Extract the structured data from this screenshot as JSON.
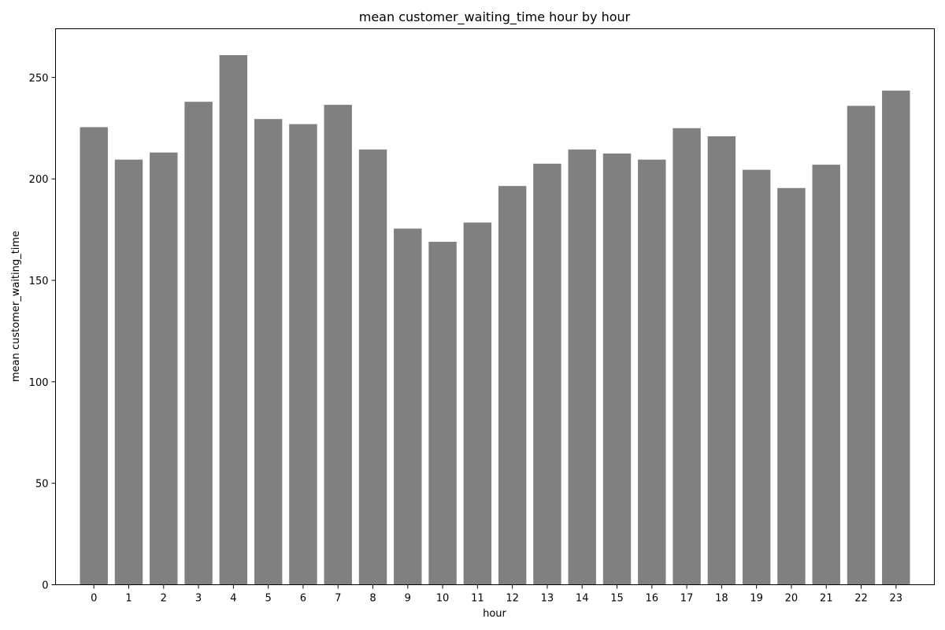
{
  "chart_data": {
    "type": "bar",
    "title": "mean customer_waiting_time hour by hour",
    "xlabel": "hour",
    "ylabel": "mean customer_waiting_time",
    "categories": [
      "0",
      "1",
      "2",
      "3",
      "4",
      "5",
      "6",
      "7",
      "8",
      "9",
      "10",
      "11",
      "12",
      "13",
      "14",
      "15",
      "16",
      "17",
      "18",
      "19",
      "20",
      "21",
      "22",
      "23"
    ],
    "values": [
      225.5,
      209.5,
      213,
      238,
      261,
      229.5,
      227,
      236.5,
      214.5,
      175.5,
      169,
      178.5,
      196.5,
      207.5,
      214.5,
      212.5,
      209.5,
      225,
      221,
      204.5,
      195.5,
      207,
      236,
      243.5
    ],
    "ylim": [
      0,
      274
    ],
    "yticks": [
      0,
      50,
      100,
      150,
      200,
      250
    ],
    "bar_color": "#808080",
    "grid": false,
    "legend": "none"
  }
}
